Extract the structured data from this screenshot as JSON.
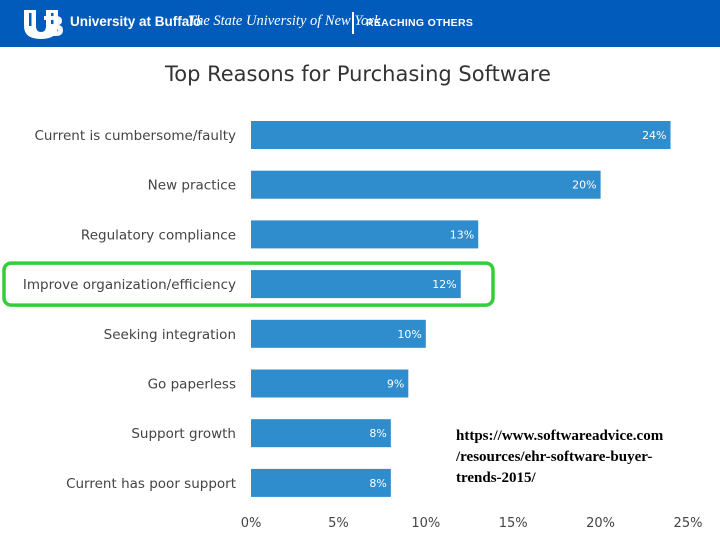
{
  "header": {
    "name": "University at Buffalo",
    "subtitle": "The State University of New York",
    "tagline": "REACHING OTHERS"
  },
  "colors": {
    "header_bg": "#005bbb",
    "bar": "#2f8ccd",
    "highlight": "#38cc3c",
    "axis_text": "#444444"
  },
  "chart_data": {
    "type": "bar",
    "orientation": "horizontal",
    "title": "Top Reasons for Purchasing Software",
    "categories": [
      "Current is cumbersome/faulty",
      "New practice",
      "Regulatory compliance",
      "Improve organization/efficiency",
      "Seeking integration",
      "Go paperless",
      "Support growth",
      "Current has poor support"
    ],
    "values": [
      24,
      20,
      13,
      12,
      10,
      9,
      8,
      8
    ],
    "value_labels": [
      "24%",
      "20%",
      "13%",
      "12%",
      "10%",
      "9%",
      "8%",
      "8%"
    ],
    "xlim": [
      0,
      25
    ],
    "ticks": [
      0,
      5,
      10,
      15,
      20,
      25
    ],
    "tick_labels": [
      "0%",
      "5%",
      "10%",
      "15%",
      "20%",
      "25%"
    ],
    "grid": false,
    "highlighted_category": "Improve organization/efficiency"
  },
  "source": {
    "lines": [
      "https://www.softwareadvice.com",
      "/resources/ehr-software-buyer-",
      "trends-2015/"
    ]
  }
}
